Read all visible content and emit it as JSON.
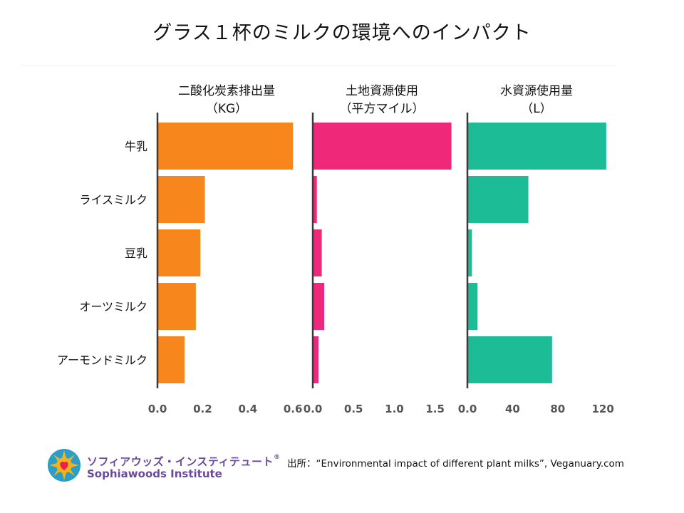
{
  "title": "グラス１杯のミルクの環境へのインパクト",
  "chart_data": {
    "type": "bar",
    "orientation": "horizontal",
    "categories": [
      "牛乳",
      "ライスミルク",
      "豆乳",
      "オーツミルク",
      "アーモンドミルク"
    ],
    "panels": [
      {
        "title_line1": "二酸化炭素排出量",
        "title_line2": "（KG）",
        "color": "#f7861d",
        "values": [
          0.6,
          0.21,
          0.19,
          0.17,
          0.12
        ],
        "xlim": [
          0,
          0.65
        ],
        "ticks": [
          0.0,
          0.2,
          0.4,
          0.6
        ],
        "tick_labels": [
          "0.0",
          "0.2",
          "0.4",
          "0.6"
        ]
      },
      {
        "title_line1": "土地資源使用",
        "title_line2": "（平方マイル）",
        "color": "#f0287a",
        "values": [
          1.7,
          0.05,
          0.11,
          0.14,
          0.07
        ],
        "xlim": [
          0,
          1.8
        ],
        "ticks": [
          0.0,
          0.5,
          1.0,
          1.5
        ],
        "tick_labels": [
          "0.0",
          "0.5",
          "1.0",
          "1.5"
        ]
      },
      {
        "title_line1": "水資源使用量",
        "title_line2": "（L）",
        "color": "#1cbd96",
        "values": [
          123,
          54,
          4,
          9,
          75
        ],
        "xlim": [
          0,
          130
        ],
        "ticks": [
          0,
          40,
          80,
          120
        ],
        "tick_labels": [
          "0.0",
          "40",
          "80",
          "120"
        ]
      }
    ],
    "grid": false,
    "legend": "none"
  },
  "logo": {
    "name_jp": "ソフィアウッズ・インスティテュート",
    "registered_mark": "®",
    "name_en": "Sophiawoods Institute",
    "colors": {
      "ring": "#2a9ec9",
      "sun": "#f3b11b",
      "heart": "#e5234d",
      "text": "#6a4a9a"
    }
  },
  "source": "出所：“Environmental impact of different plant milks”, Veganuary.com"
}
